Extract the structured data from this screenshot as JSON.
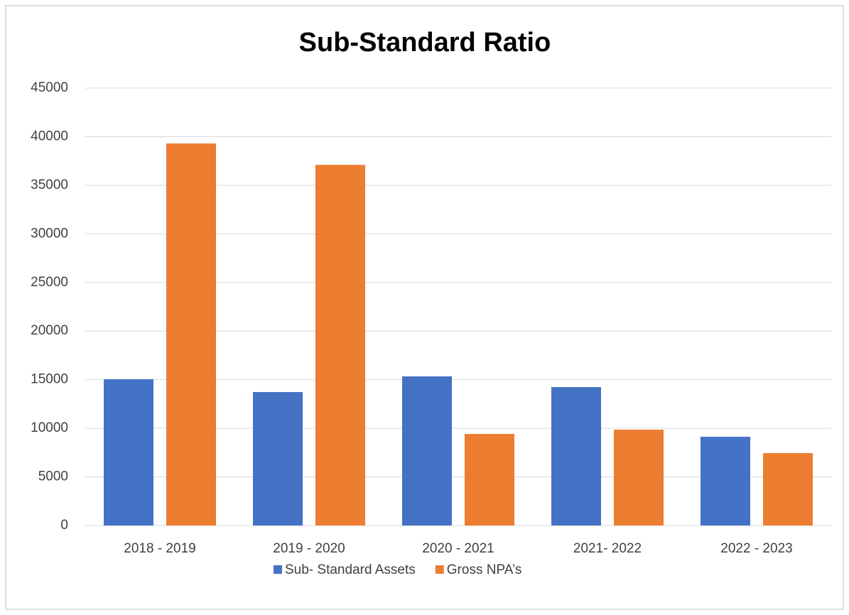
{
  "chart_data": {
    "type": "bar",
    "title": "Sub-Standard Ratio",
    "categories": [
      "2018 - 2019",
      "2019 - 2020",
      "2020 - 2021",
      "2021- 2022",
      "2022 - 2023"
    ],
    "series": [
      {
        "name": "Sub- Standard Assets",
        "color": "#4472c4",
        "values": [
          15050,
          13730,
          15340,
          14240,
          9130
        ]
      },
      {
        "name": "Gross NPA’s",
        "color": "#ed7d31",
        "values": [
          39300,
          37100,
          9420,
          9860,
          7450
        ]
      }
    ],
    "ylim": [
      0,
      45000
    ],
    "yticks": [
      0,
      5000,
      10000,
      15000,
      20000,
      25000,
      30000,
      35000,
      40000,
      45000
    ],
    "grid": true,
    "legend": "bottom"
  }
}
